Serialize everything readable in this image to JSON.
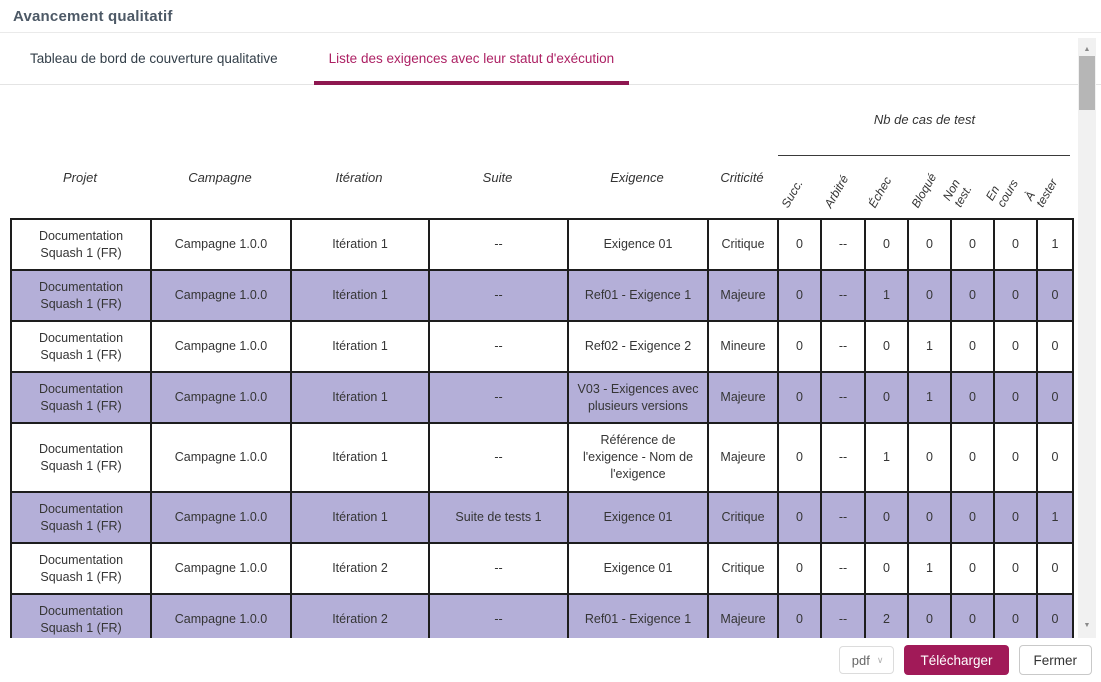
{
  "window": {
    "title": "Avancement qualitatif"
  },
  "tabs": [
    {
      "label": "Tableau de bord de couverture qualitative",
      "active": false
    },
    {
      "label": "Liste des exigences avec leur statut d'exécution",
      "active": true
    }
  ],
  "report": {
    "group_header": "Nb de cas de test",
    "columns": [
      "Projet",
      "Campagne",
      "Itération",
      "Suite",
      "Exigence",
      "Criticité"
    ],
    "status_columns": [
      "Succ.",
      "Arbitré",
      "Échec",
      "Bloqué",
      "Non\ntest.",
      "En\ncours",
      "À\ntester"
    ],
    "rows": [
      {
        "cells": [
          "Documentation Squash 1 (FR)",
          "Campagne 1.0.0",
          "Itération 1",
          "--",
          "Exigence 01",
          "Critique",
          "0",
          "--",
          "0",
          "0",
          "0",
          "0",
          "1"
        ]
      },
      {
        "cells": [
          "Documentation Squash 1 (FR)",
          "Campagne 1.0.0",
          "Itération 1",
          "--",
          "Ref01 - Exigence 1",
          "Majeure",
          "0",
          "--",
          "1",
          "0",
          "0",
          "0",
          "0"
        ]
      },
      {
        "cells": [
          "Documentation Squash 1 (FR)",
          "Campagne 1.0.0",
          "Itération 1",
          "--",
          "Ref02 - Exigence 2",
          "Mineure",
          "0",
          "--",
          "0",
          "1",
          "0",
          "0",
          "0"
        ]
      },
      {
        "cells": [
          "Documentation Squash 1 (FR)",
          "Campagne 1.0.0",
          "Itération 1",
          "--",
          "V03 - Exigences avec plusieurs versions",
          "Majeure",
          "0",
          "--",
          "0",
          "1",
          "0",
          "0",
          "0"
        ]
      },
      {
        "cells": [
          "Documentation Squash 1 (FR)",
          "Campagne 1.0.0",
          "Itération 1",
          "--",
          "Référence de l'exigence - Nom de l'exigence",
          "Majeure",
          "0",
          "--",
          "1",
          "0",
          "0",
          "0",
          "0"
        ]
      },
      {
        "cells": [
          "Documentation Squash 1 (FR)",
          "Campagne 1.0.0",
          "Itération 1",
          "Suite de tests 1",
          "Exigence 01",
          "Critique",
          "0",
          "--",
          "0",
          "0",
          "0",
          "0",
          "1"
        ]
      },
      {
        "cells": [
          "Documentation Squash 1 (FR)",
          "Campagne 1.0.0",
          "Itération 2",
          "--",
          "Exigence 01",
          "Critique",
          "0",
          "--",
          "0",
          "1",
          "0",
          "0",
          "0"
        ]
      },
      {
        "cells": [
          "Documentation Squash 1 (FR)",
          "Campagne 1.0.0",
          "Itération 2",
          "--",
          "Ref01 - Exigence 1",
          "Majeure",
          "0",
          "--",
          "2",
          "0",
          "0",
          "0",
          "0"
        ]
      }
    ]
  },
  "footer": {
    "format": "pdf",
    "download": "Télécharger",
    "close": "Fermer"
  },
  "icons": {
    "chevron_down": "∨",
    "scroll_up": "▲",
    "scroll_down": "▼"
  },
  "colors": {
    "accent": "#a11a58",
    "tab_active": "#ad2164",
    "tab_underline": "#8e1750",
    "row_alt": "#b4afd8",
    "table_border": "#1d1d1d"
  }
}
